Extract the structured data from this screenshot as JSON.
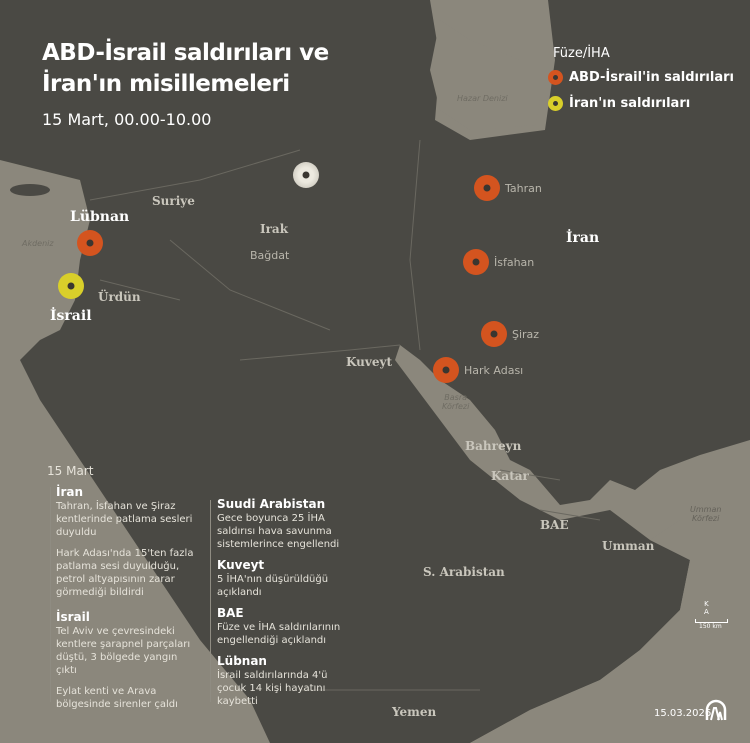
{
  "title_line1": "ABD-İsrail saldırıları ve",
  "title_line2": "İran'ın misillemeleri",
  "subtitle": "15 Mart, 00.00-10.00",
  "legend": {
    "heading": "Füze/İHA",
    "items": [
      {
        "label": "ABD-İsrail'in saldırıları",
        "color": "#d4541f"
      },
      {
        "label": "İran'ın saldırıları",
        "color": "#d9cf2a"
      }
    ]
  },
  "map": {
    "countries": {
      "iran": "İran",
      "suriye": "Suriye",
      "irak": "Irak",
      "lubnan": "Lübnan",
      "urdun": "Ürdün",
      "israil": "İsrail",
      "kuveyt": "Kuveyt",
      "bahreyn": "Bahreyn",
      "katar": "Katar",
      "bae": "BAE",
      "umman": "Umman",
      "suudi": "S. Arabistan",
      "yemen": "Yemen"
    },
    "cities": {
      "tahran": "Tahran",
      "isfahan": "İsfahan",
      "siraz": "Şiraz",
      "hark": "Hark Adası",
      "bagdat": "Bağdat"
    },
    "water": {
      "akdeniz": "Akdeniz",
      "hazar": "Hazar Denizi",
      "basra1": "Basra",
      "basra2": "Körfezi",
      "umman1": "Umman",
      "umman2": "Körfezi"
    },
    "scale": {
      "north1": "K",
      "north2": "A",
      "distance": "150 km"
    },
    "colors": {
      "land": "#4a4944",
      "water": "#8b877c"
    }
  },
  "panel": {
    "date": "15 Mart",
    "left": [
      {
        "heading": "İran",
        "paras": [
          "Tahran, İsfahan ve Şiraz\nkentlerinde patlama sesleri\nduyuldu",
          "Hark Adası'nda 15'ten fazla\npatlama sesi duyulduğu,\npetrol altyapısının zarar\ngörmediği bildirdi"
        ]
      },
      {
        "heading": "İsrail",
        "paras": [
          "Tel Aviv ve çevresindeki\nkentlere şarapnel parçaları\ndüştü, 3 bölgede yangın\nçıktı",
          "Eylat kenti ve Arava\nbölgesinde sirenler çaldı"
        ]
      }
    ],
    "right": [
      {
        "heading": "Suudi Arabistan",
        "paras": [
          "Gece boyunca 25 İHA\nsaldırısı hava savunma\nsistemlerince engellendi"
        ]
      },
      {
        "heading": "Kuveyt",
        "paras": [
          "5 İHA'nın düşürüldüğü\naçıklandı"
        ]
      },
      {
        "heading": "BAE",
        "paras": [
          "Füze ve İHA saldırılarının\nengellendiği açıklandı"
        ]
      },
      {
        "heading": "Lübnan",
        "paras": [
          "İsrail saldırılarında 4'ü\nçocuk 14 kişi hayatını\nkaybetti"
        ]
      }
    ]
  },
  "footer": {
    "date": "15.03.2026",
    "logo": "AA"
  }
}
